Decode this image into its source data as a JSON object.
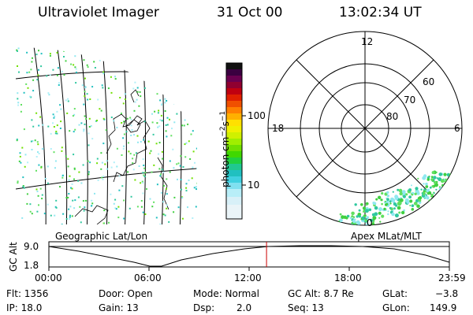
{
  "header": {
    "instrument": "Ultraviolet Imager",
    "date": "31 Oct 00",
    "time": "13:02:34 UT"
  },
  "colorbar": {
    "unit": "photon cm",
    "unit_exp1": "−2",
    "unit_s": "s",
    "unit_exp2": "−1",
    "ticks": [
      "100",
      "10"
    ]
  },
  "polar": {
    "mlt_labels": {
      "top": "12",
      "left": "18",
      "right": "6",
      "bottom": "0"
    },
    "lat_labels": [
      "60",
      "70",
      "80"
    ]
  },
  "panel_labels": {
    "geographic": "Geographic Lat/Lon",
    "apex": "Apex MLat/MLT"
  },
  "altitude_plot": {
    "ylabel": "GC Alt",
    "ymax": "9.0",
    "ymin": "1.8",
    "xticks": [
      "00:00",
      "06:00",
      "12:00",
      "18:00",
      "23:59"
    ],
    "current_time_fraction": 0.5435,
    "marker_color": "#cc0000"
  },
  "info": {
    "flt": "Flt: 1356",
    "ip": "IP: 18.0",
    "door": "Door: Open",
    "gain": "Gain: 13",
    "mode": "Mode: Normal",
    "dsp_label": "Dsp:",
    "dsp_value": "2.0",
    "gcalt": "GC Alt: 8.7 Re",
    "seq": "Seq: 13",
    "glat_label": "GLat:",
    "glat_value": "−3.8",
    "glon_label": "GLon:",
    "glon_value": "149.9"
  }
}
